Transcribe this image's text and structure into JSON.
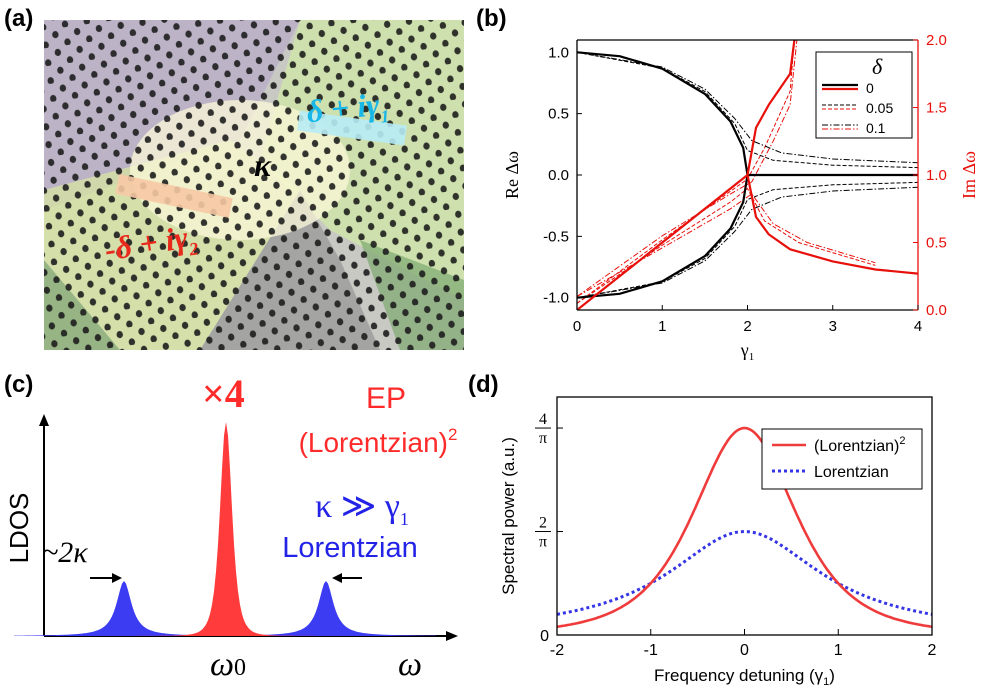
{
  "panel_labels": {
    "a": "(a)",
    "b": "(b)",
    "c": "(c)",
    "d": "(d)"
  },
  "panel_a": {
    "labels": {
      "top": "δ + iγ",
      "top_sub": "1",
      "middle": "κ",
      "bottom": "-δ + iγ",
      "bottom_sub": "2"
    },
    "colors": {
      "top": "#19b6e8",
      "middle": "#000000",
      "bottom": "#e8291b"
    }
  },
  "panel_c": {
    "ylabel": "LDOS",
    "xlabel": "ω",
    "center_label": "ω",
    "center_sub": "0",
    "ep_label": "EP",
    "lorentzian_sq_label": "(Lorentzian)",
    "lorentzian_sq_sup": "2",
    "factor_label": "×4",
    "kappa_label": "κ ≫ γ",
    "kappa_sub": "1",
    "lorentzian_label": "Lorentzian",
    "splitting_label": "~2κ",
    "colors": {
      "ep": "#ff2b2b",
      "split": "#2323e8"
    }
  },
  "chart_data": [
    {
      "panel": "(b)",
      "type": "line",
      "xlabel": "γ",
      "xlabel_sub": "1",
      "ylabel_left": "Re Δω",
      "ylabel_right": "Im Δω",
      "xlim": [
        0,
        4
      ],
      "ylim_left": [
        -1.1,
        1.1
      ],
      "ylim_right": [
        0,
        2
      ],
      "x_ticks": [
        "0",
        "1",
        "2",
        "3",
        "4"
      ],
      "y_ticks_left": [
        "-1.0",
        "-0.5",
        "0.0",
        "0.5",
        "1.0"
      ],
      "y_ticks_right": [
        "0.0",
        "0.5",
        "1.0",
        "1.5",
        "2.0"
      ],
      "legend_title": "δ",
      "legend": [
        {
          "label": "0",
          "style": "solid"
        },
        {
          "label": "0.05",
          "style": "dashed"
        },
        {
          "label": "0.1",
          "style": "dashdot"
        }
      ],
      "legend_position": "top-right",
      "series": [
        {
          "name": "0",
          "style": "solid",
          "axis": "left",
          "points": [
            [
              0,
              1.0
            ],
            [
              0.5,
              0.968
            ],
            [
              1.0,
              0.866
            ],
            [
              1.5,
              0.661
            ],
            [
              1.8,
              0.436
            ],
            [
              1.95,
              0.222
            ],
            [
              2.0,
              0.0
            ],
            [
              4.0,
              0.0
            ]
          ]
        },
        {
          "name": "0",
          "style": "solid",
          "axis": "left",
          "points": [
            [
              0,
              -1.0
            ],
            [
              0.5,
              -0.968
            ],
            [
              1.0,
              -0.866
            ],
            [
              1.5,
              -0.661
            ],
            [
              1.8,
              -0.436
            ],
            [
              1.95,
              -0.222
            ],
            [
              2.0,
              0.0
            ]
          ]
        },
        {
          "name": "0",
          "style": "solid",
          "axis": "right",
          "points": [
            [
              0,
              0.0
            ],
            [
              0.5,
              0.25
            ],
            [
              1.0,
              0.5
            ],
            [
              1.5,
              0.75
            ],
            [
              2.0,
              1.0
            ]
          ]
        },
        {
          "name": "0",
          "style": "solid",
          "axis": "right",
          "points": [
            [
              2.0,
              1.0
            ],
            [
              2.1,
              1.35
            ],
            [
              2.25,
              1.52
            ],
            [
              2.5,
              1.75
            ],
            [
              2.55,
              2.0
            ]
          ]
        },
        {
          "name": "0",
          "style": "solid",
          "axis": "right",
          "points": [
            [
              2.0,
              1.0
            ],
            [
              2.1,
              0.69
            ],
            [
              2.25,
              0.56
            ],
            [
              2.5,
              0.45
            ],
            [
              3.0,
              0.36
            ],
            [
              3.5,
              0.3
            ],
            [
              4.0,
              0.27
            ]
          ]
        },
        {
          "name": "0.05",
          "style": "dashed",
          "axis": "left",
          "points": [
            [
              0,
              1.0
            ],
            [
              1.0,
              0.87
            ],
            [
              1.5,
              0.68
            ],
            [
              1.85,
              0.42
            ],
            [
              2.0,
              0.2
            ],
            [
              2.3,
              0.12
            ],
            [
              3.0,
              0.08
            ],
            [
              4.0,
              0.06
            ]
          ]
        },
        {
          "name": "0.05",
          "style": "dashed",
          "axis": "left",
          "points": [
            [
              0,
              -1.0
            ],
            [
              1.0,
              -0.87
            ],
            [
              1.5,
              -0.68
            ],
            [
              1.85,
              -0.42
            ],
            [
              2.0,
              -0.2
            ],
            [
              2.3,
              -0.12
            ],
            [
              3.0,
              -0.08
            ],
            [
              4.0,
              -0.06
            ]
          ]
        },
        {
          "name": "0.1",
          "style": "dashdot",
          "axis": "left",
          "points": [
            [
              0,
              1.0
            ],
            [
              1.0,
              0.88
            ],
            [
              1.5,
              0.7
            ],
            [
              1.85,
              0.46
            ],
            [
              2.05,
              0.28
            ],
            [
              2.4,
              0.18
            ],
            [
              3.0,
              0.13
            ],
            [
              4.0,
              0.1
            ]
          ]
        },
        {
          "name": "0.1",
          "style": "dashdot",
          "axis": "left",
          "points": [
            [
              0,
              -1.0
            ],
            [
              1.0,
              -0.88
            ],
            [
              1.5,
              -0.7
            ],
            [
              1.85,
              -0.46
            ],
            [
              2.05,
              -0.28
            ],
            [
              2.4,
              -0.18
            ],
            [
              3.0,
              -0.13
            ],
            [
              4.0,
              -0.1
            ]
          ]
        }
      ]
    },
    {
      "panel": "(d)",
      "type": "line",
      "xlabel": "Frequency detuning (γ",
      "xlabel_sub": "1",
      "xlabel_end": ")",
      "ylabel": "Spectral power (a.u.)",
      "xlim": [
        -2,
        2
      ],
      "ylim": [
        0,
        4.6
      ],
      "x_ticks": [
        "-2",
        "-1",
        "0",
        "1",
        "2"
      ],
      "y_ticks": [
        {
          "value": 0,
          "num": "0",
          "den": ""
        },
        {
          "value": 2,
          "num": "2",
          "den": "π"
        },
        {
          "value": 4,
          "num": "4",
          "den": "π"
        }
      ],
      "legend_position": "top-right",
      "series": [
        {
          "name": "(Lorentzian)",
          "name_sup": "2",
          "style": "solid",
          "color": "#ef3b3b",
          "formula": "4/(1+x^2)^2 in units of 1/π"
        },
        {
          "name": "Lorentzian",
          "style": "dotted",
          "color": "#3535e6",
          "formula": "2/(1+x^2) in units of 1/π"
        }
      ]
    }
  ]
}
